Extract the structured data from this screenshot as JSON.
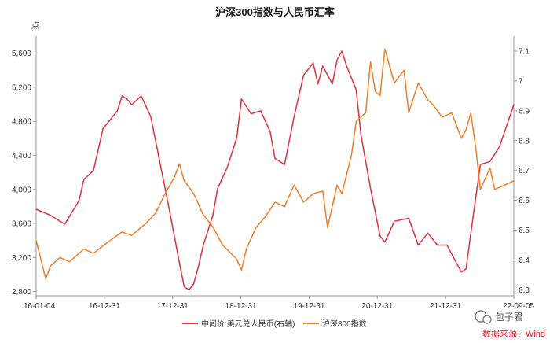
{
  "chart_data": {
    "type": "line",
    "title": "沪深300指数与人民币汇率",
    "y_unit_left": "点",
    "x_ticks": [
      "16-01-04",
      "16-12-31",
      "17-12-31",
      "18-12-31",
      "19-12-31",
      "20-12-31",
      "21-12-31",
      "22-09-05"
    ],
    "y_left_ticks": [
      "2,800",
      "3,200",
      "3,600",
      "4,000",
      "4,400",
      "4,800",
      "5,200",
      "5,600"
    ],
    "y_right_ticks": [
      "6.3",
      "6.4",
      "6.5",
      "6.6",
      "6.7",
      "6.8",
      "6.9",
      "7",
      "7.1"
    ],
    "ylim_left": [
      2750,
      5800
    ],
    "ylim_right": [
      6.28,
      7.15
    ],
    "series": [
      {
        "name": "中间价:美元兑人民币(右轴)",
        "axis": "right",
        "color": "#e0303e",
        "x": [
          0,
          0.03,
          0.06,
          0.09,
          0.1,
          0.12,
          0.14,
          0.17,
          0.18,
          0.19,
          0.2,
          0.22,
          0.24,
          0.26,
          0.28,
          0.3,
          0.31,
          0.32,
          0.33,
          0.34,
          0.35,
          0.37,
          0.38,
          0.4,
          0.42,
          0.43,
          0.45,
          0.47,
          0.49,
          0.5,
          0.52,
          0.54,
          0.56,
          0.58,
          0.59,
          0.6,
          0.62,
          0.63,
          0.64,
          0.65,
          0.67,
          0.68,
          0.7,
          0.72,
          0.73,
          0.75,
          0.78,
          0.8,
          0.82,
          0.84,
          0.86,
          0.88,
          0.89,
          0.9,
          0.91,
          0.93,
          0.95,
          0.97,
          1.0
        ],
        "values": [
          6.57,
          6.55,
          6.52,
          6.6,
          6.67,
          6.7,
          6.84,
          6.9,
          6.95,
          6.94,
          6.92,
          6.95,
          6.88,
          6.72,
          6.56,
          6.39,
          6.31,
          6.3,
          6.32,
          6.38,
          6.45,
          6.55,
          6.64,
          6.71,
          6.81,
          6.94,
          6.89,
          6.9,
          6.83,
          6.74,
          6.72,
          6.88,
          7.02,
          7.06,
          6.99,
          7.05,
          6.99,
          7.07,
          7.1,
          7.05,
          6.97,
          6.82,
          6.64,
          6.48,
          6.46,
          6.53,
          6.54,
          6.45,
          6.49,
          6.45,
          6.45,
          6.39,
          6.36,
          6.37,
          6.49,
          6.72,
          6.73,
          6.78,
          6.92
        ]
      },
      {
        "name": "沪深300指数",
        "axis": "left",
        "color": "#f07e2a",
        "x": [
          0,
          0.02,
          0.03,
          0.05,
          0.07,
          0.1,
          0.12,
          0.15,
          0.18,
          0.2,
          0.23,
          0.25,
          0.27,
          0.29,
          0.3,
          0.31,
          0.33,
          0.35,
          0.37,
          0.39,
          0.42,
          0.43,
          0.44,
          0.46,
          0.48,
          0.5,
          0.52,
          0.54,
          0.56,
          0.58,
          0.6,
          0.61,
          0.63,
          0.64,
          0.66,
          0.67,
          0.69,
          0.7,
          0.71,
          0.72,
          0.73,
          0.75,
          0.77,
          0.78,
          0.8,
          0.82,
          0.83,
          0.85,
          0.87,
          0.89,
          0.9,
          0.91,
          0.92,
          0.93,
          0.95,
          0.96,
          1.0
        ],
        "values": [
          3400,
          2950,
          3100,
          3200,
          3150,
          3300,
          3250,
          3380,
          3500,
          3460,
          3600,
          3720,
          3950,
          4150,
          4300,
          4100,
          3950,
          3700,
          3560,
          3350,
          3180,
          3050,
          3300,
          3550,
          3680,
          3850,
          3800,
          4050,
          3850,
          3950,
          3980,
          3550,
          4050,
          3950,
          4400,
          4800,
          4900,
          5500,
          5150,
          5100,
          5650,
          5250,
          5400,
          4900,
          5250,
          5050,
          5000,
          4850,
          4900,
          4600,
          4700,
          4900,
          4500,
          4000,
          4250,
          4000,
          4100
        ]
      }
    ],
    "legend_position": "bottom",
    "grid": false,
    "watermark": "包子君",
    "source": "数据来源：Wind"
  }
}
